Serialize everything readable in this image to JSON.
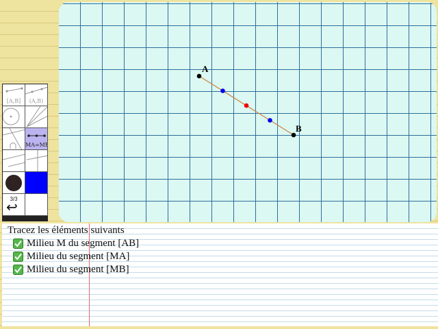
{
  "board": {
    "points": [
      {
        "label": "A",
        "kind": "named",
        "color": "#000000"
      },
      {
        "label": "B",
        "kind": "named",
        "color": "#000000"
      }
    ],
    "segment_color": "#cc8844",
    "midpoint_color": "#ee0000",
    "quarter_point_color": "#0000ee"
  },
  "toolbox": {
    "tool_segment_label": "[A,B]",
    "tool_line_label": "(A,B)",
    "tool_midpoint_label": "MA=MB",
    "page_indicator": "3/3",
    "undo_glyph": "↩",
    "selected_color": "#0000ff",
    "point_color": "#2e2222"
  },
  "instructions": {
    "title": "Tracez les éléments suivants",
    "tasks": [
      {
        "text": "Milieu M du segment [AB]",
        "done": true
      },
      {
        "text": "Milieu du segment [MA]",
        "done": true
      },
      {
        "text": "Milieu du segment [MB]",
        "done": true
      }
    ]
  }
}
